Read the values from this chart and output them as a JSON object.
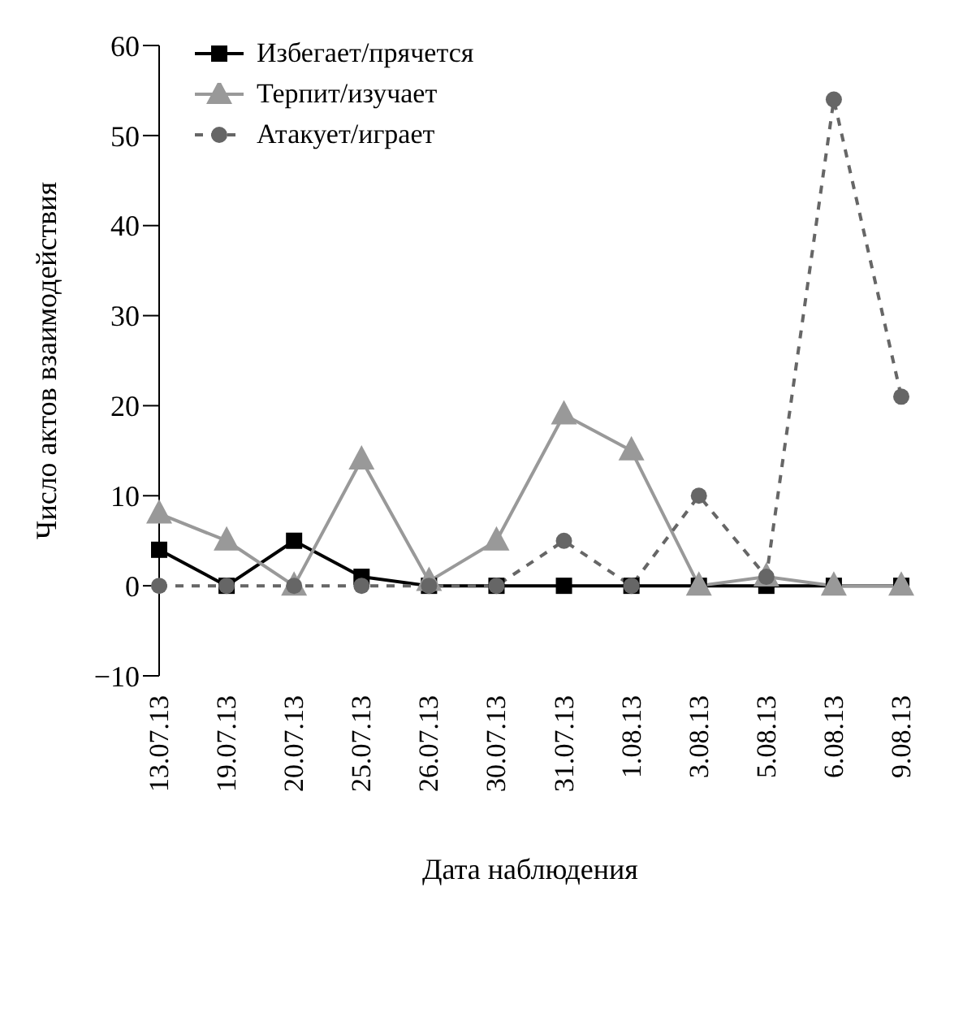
{
  "chart_data": {
    "type": "line",
    "xlabel": "Дата наблюдения",
    "ylabel": "Число актов взаимодействия",
    "categories": [
      "13.07.13",
      "19.07.13",
      "20.07.13",
      "25.07.13",
      "26.07.13",
      "30.07.13",
      "31.07.13",
      "1.08.13",
      "3.08.13",
      "5.08.13",
      "6.08.13",
      "9.08.13"
    ],
    "ylim": [
      -10,
      60
    ],
    "yticks": [
      {
        "value": -10,
        "label": "−10"
      },
      0,
      10,
      20,
      30,
      40,
      50,
      60
    ],
    "grid": false,
    "legend": "top left",
    "series": [
      {
        "name": "Избегает/прячется",
        "color": "#000000",
        "marker": "square",
        "line_style": "solid",
        "values": [
          4,
          0,
          5,
          1,
          0,
          0,
          0,
          0,
          0,
          0,
          0,
          0
        ]
      },
      {
        "name": "Терпит/изучает",
        "color": "#999999",
        "marker": "triangle",
        "line_style": "solid",
        "values": [
          8,
          5,
          0,
          14,
          0.5,
          5,
          19,
          15,
          0,
          1,
          0,
          0
        ]
      },
      {
        "name": "Атакует/играет",
        "color": "#666666",
        "marker": "circle",
        "line_style": "dashed",
        "values": [
          0,
          0,
          0,
          0,
          0,
          0,
          5,
          0,
          10,
          1,
          54,
          21
        ]
      }
    ]
  }
}
